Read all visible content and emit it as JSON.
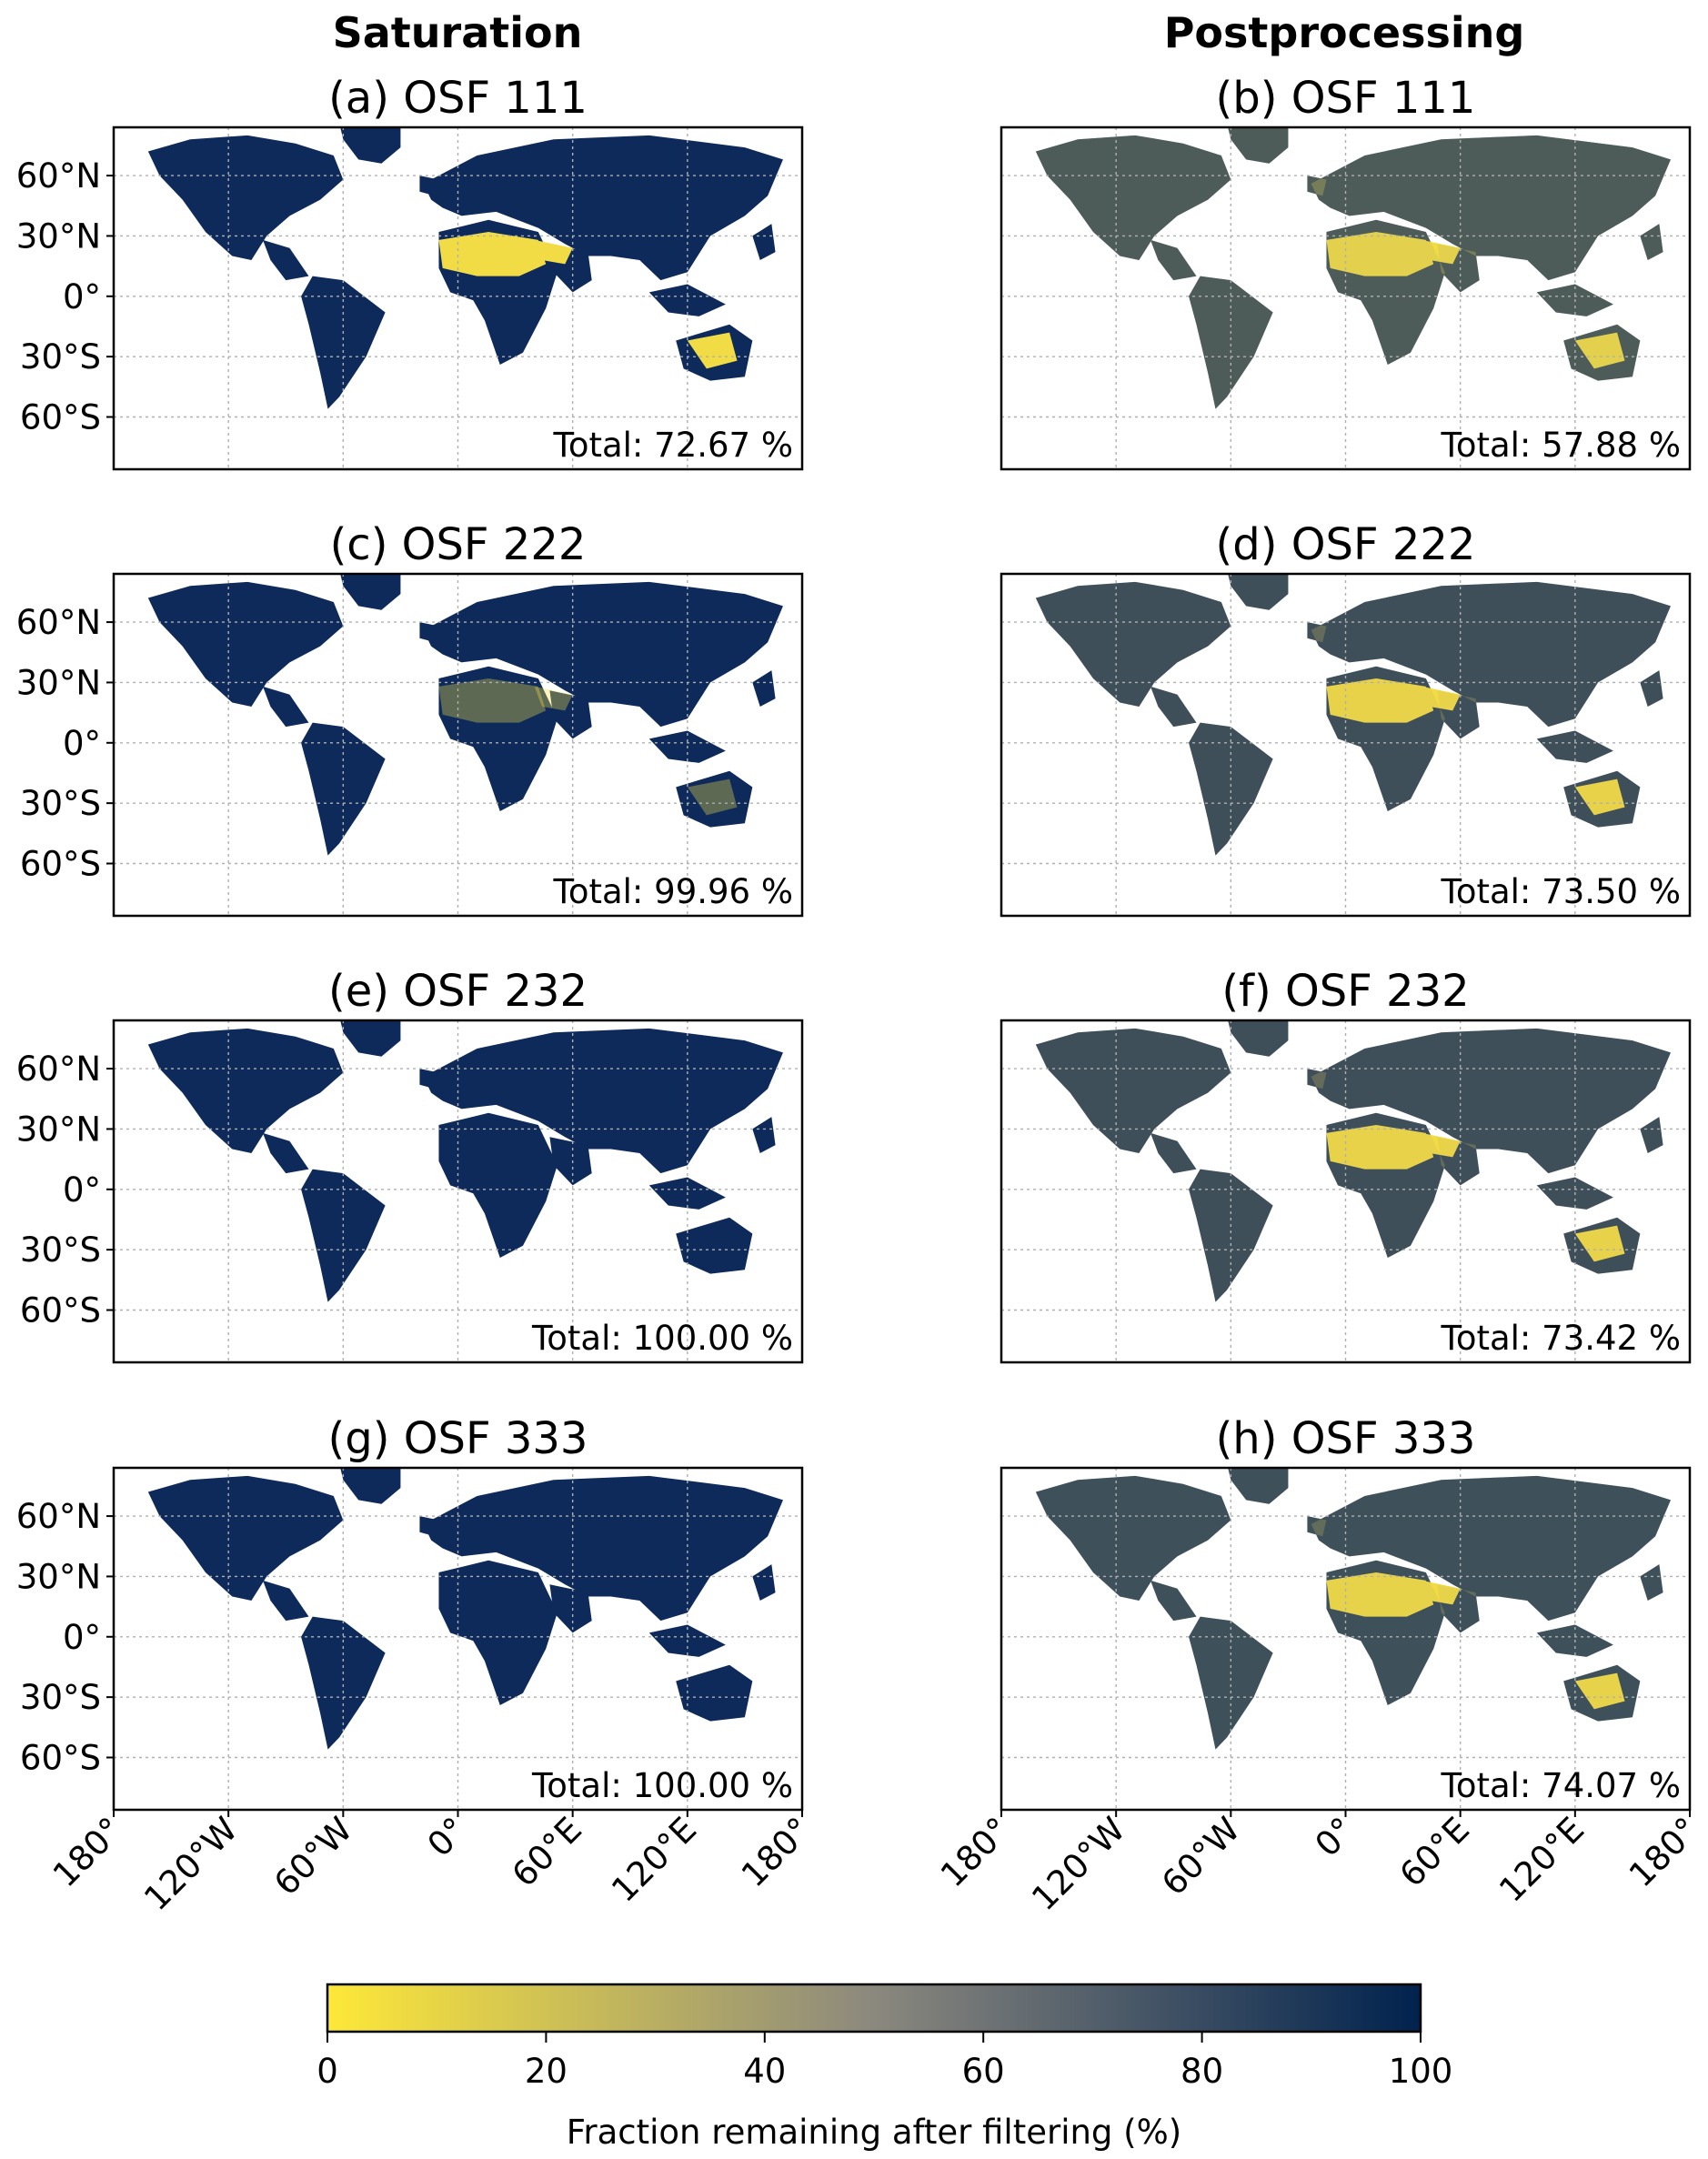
{
  "figure": {
    "columns": [
      "Saturation",
      "Postprocessing"
    ],
    "colorbar": {
      "label": "Fraction remaining after filtering (%)",
      "ticks": [
        0,
        20,
        40,
        60,
        80,
        100
      ],
      "range": [
        0,
        100
      ],
      "colors": [
        "#fee838",
        "#8b887e",
        "#00224e"
      ]
    },
    "lat_ticks": [
      "60°N",
      "30°N",
      "0°",
      "30°S",
      "60°S"
    ],
    "lon_ticks": [
      "180°",
      "120°W",
      "60°W",
      "0°",
      "60°E",
      "120°E",
      "180°"
    ]
  },
  "chart_data": [
    {
      "type": "heatmap",
      "title": "(a) OSF 111",
      "column": "Saturation",
      "annotation": "Total: 72.67 %",
      "total_percent": 72.67,
      "lat_ticks": [
        60,
        30,
        0,
        -30,
        -60
      ],
      "lon_ticks": [
        -180,
        -120,
        -60,
        0,
        60,
        120,
        180
      ],
      "xlim": [
        -180,
        180
      ],
      "ylim": [
        -90,
        90
      ]
    },
    {
      "type": "heatmap",
      "title": "(b) OSF 111",
      "column": "Postprocessing",
      "annotation": "Total: 57.88 %",
      "total_percent": 57.88,
      "lat_ticks": [
        60,
        30,
        0,
        -30,
        -60
      ],
      "lon_ticks": [
        -180,
        -120,
        -60,
        0,
        60,
        120,
        180
      ],
      "xlim": [
        -180,
        180
      ],
      "ylim": [
        -90,
        90
      ]
    },
    {
      "type": "heatmap",
      "title": "(c) OSF 222",
      "column": "Saturation",
      "annotation": "Total: 99.96 %",
      "total_percent": 99.96,
      "lat_ticks": [
        60,
        30,
        0,
        -30,
        -60
      ],
      "lon_ticks": [
        -180,
        -120,
        -60,
        0,
        60,
        120,
        180
      ],
      "xlim": [
        -180,
        180
      ],
      "ylim": [
        -90,
        90
      ]
    },
    {
      "type": "heatmap",
      "title": "(d) OSF 222",
      "column": "Postprocessing",
      "annotation": "Total: 73.50 %",
      "total_percent": 73.5,
      "lat_ticks": [
        60,
        30,
        0,
        -30,
        -60
      ],
      "lon_ticks": [
        -180,
        -120,
        -60,
        0,
        60,
        120,
        180
      ],
      "xlim": [
        -180,
        180
      ],
      "ylim": [
        -90,
        90
      ]
    },
    {
      "type": "heatmap",
      "title": "(e) OSF 232",
      "column": "Saturation",
      "annotation": "Total: 100.00 %",
      "total_percent": 100.0,
      "lat_ticks": [
        60,
        30,
        0,
        -30,
        -60
      ],
      "lon_ticks": [
        -180,
        -120,
        -60,
        0,
        60,
        120,
        180
      ],
      "xlim": [
        -180,
        180
      ],
      "ylim": [
        -90,
        90
      ]
    },
    {
      "type": "heatmap",
      "title": "(f) OSF 232",
      "column": "Postprocessing",
      "annotation": "Total: 73.42 %",
      "total_percent": 73.42,
      "lat_ticks": [
        60,
        30,
        0,
        -30,
        -60
      ],
      "lon_ticks": [
        -180,
        -120,
        -60,
        0,
        60,
        120,
        180
      ],
      "xlim": [
        -180,
        180
      ],
      "ylim": [
        -90,
        90
      ]
    },
    {
      "type": "heatmap",
      "title": "(g) OSF 333",
      "column": "Saturation",
      "annotation": "Total: 100.00 %",
      "total_percent": 100.0,
      "lat_ticks": [
        60,
        30,
        0,
        -30,
        -60
      ],
      "lon_ticks": [
        -180,
        -120,
        -60,
        0,
        60,
        120,
        180
      ],
      "xlim": [
        -180,
        180
      ],
      "ylim": [
        -90,
        90
      ]
    },
    {
      "type": "heatmap",
      "title": "(h) OSF 333",
      "column": "Postprocessing",
      "annotation": "Total: 74.07 %",
      "total_percent": 74.07,
      "lat_ticks": [
        60,
        30,
        0,
        -30,
        -60
      ],
      "lon_ticks": [
        -180,
        -120,
        -60,
        0,
        60,
        120,
        180
      ],
      "xlim": [
        -180,
        180
      ],
      "ylim": [
        -90,
        90
      ]
    }
  ]
}
